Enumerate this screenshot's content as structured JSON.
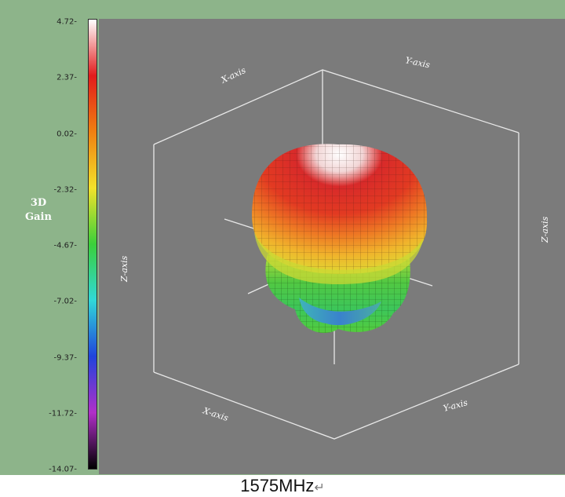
{
  "chart_data": {
    "type": "3d-surface",
    "colorbar": {
      "title": [
        "3D",
        "Gain"
      ],
      "ticks": [
        "4.72-",
        "2.37-",
        "0.02-",
        "-2.32-",
        "-4.67-",
        "-7.02-",
        "-9.37-",
        "-11.72-",
        "-14.07-"
      ],
      "range": [
        -14.07,
        4.72
      ],
      "colors": [
        "#ffffff",
        "#e21c1c",
        "#f08010",
        "#f2e22a",
        "#3ad03a",
        "#30d8d8",
        "#2044dc",
        "#b030c8",
        "#000000"
      ]
    },
    "axes": {
      "x_top": "X-axis",
      "y_top": "Y-axis",
      "z_right": "Z-axis",
      "left": "Z-axis",
      "bottom_left": "X-axis",
      "bottom_right": "Y-axis"
    },
    "pattern_colors": [
      "#ffffff",
      "#d62a2a",
      "#ee7a24",
      "#f0c22c",
      "#8fd63a",
      "#3fbf4a",
      "#3a9fc8"
    ]
  },
  "caption": "1575MHz",
  "caption_mark": "↵"
}
